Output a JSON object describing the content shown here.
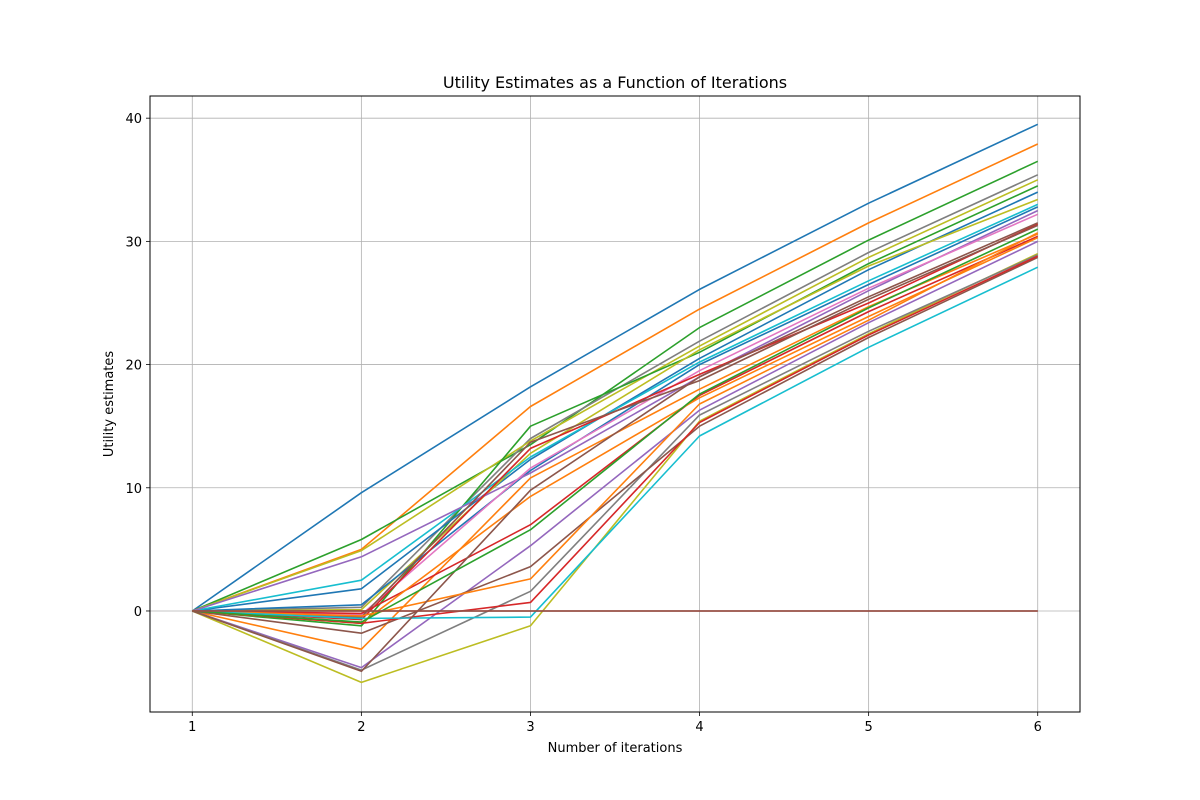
{
  "chart_data": {
    "type": "line",
    "title": "Utility Estimates as a Function of Iterations",
    "xlabel": "Number of iterations",
    "ylabel": "Utility estimates",
    "x": [
      1,
      2,
      3,
      4,
      5,
      6
    ],
    "xlim": [
      0.75,
      6.25
    ],
    "ylim": [
      -8.2,
      41.8
    ],
    "xticks": [
      1,
      2,
      3,
      4,
      5,
      6
    ],
    "yticks": [
      0,
      10,
      20,
      30,
      40
    ],
    "grid": true,
    "series": [
      {
        "color": "#1f77b4",
        "values": [
          0,
          9.6,
          18.2,
          26.1,
          33.1,
          39.5
        ]
      },
      {
        "color": "#ff7f0e",
        "values": [
          0,
          5.0,
          16.6,
          24.5,
          31.5,
          37.9
        ]
      },
      {
        "color": "#2ca02c",
        "values": [
          0,
          5.8,
          13.5,
          23.0,
          30.1,
          36.5
        ]
      },
      {
        "color": "#7f7f7f",
        "values": [
          0,
          0.3,
          14.0,
          21.9,
          29.1,
          35.4
        ]
      },
      {
        "color": "#bcbd22",
        "values": [
          0,
          4.9,
          13.8,
          21.5,
          28.7,
          35.0
        ]
      },
      {
        "color": "#2ca02c",
        "values": [
          0,
          -1.2,
          15.0,
          21.0,
          28.2,
          34.5
        ]
      },
      {
        "color": "#1f77b4",
        "values": [
          0,
          1.8,
          12.3,
          20.5,
          27.7,
          34.0
        ]
      },
      {
        "color": "#bcbd22",
        "values": [
          0,
          0.1,
          12.8,
          21.2,
          28.0,
          33.4
        ]
      },
      {
        "color": "#17becf",
        "values": [
          0,
          2.5,
          12.5,
          20.2,
          26.8,
          33.0
        ]
      },
      {
        "color": "#1f77b4",
        "values": [
          0,
          0.5,
          11.4,
          20.0,
          26.5,
          32.8
        ]
      },
      {
        "color": "#9467bd",
        "values": [
          0,
          4.4,
          11.2,
          19.0,
          26.0,
          32.5
        ]
      },
      {
        "color": "#e377c2",
        "values": [
          0,
          -0.3,
          11.6,
          19.5,
          26.2,
          32.2
        ]
      },
      {
        "color": "#d62728",
        "values": [
          0,
          -0.7,
          13.2,
          19.2,
          25.0,
          31.4
        ]
      },
      {
        "color": "#8c564b",
        "values": [
          0,
          -0.5,
          13.7,
          18.7,
          25.3,
          31.3
        ]
      },
      {
        "color": "#ff7f0e",
        "values": [
          0,
          -3.1,
          10.8,
          18.0,
          24.7,
          30.6
        ]
      },
      {
        "color": "#d62728",
        "values": [
          0,
          -0.2,
          7.0,
          17.5,
          24.3,
          30.4
        ]
      },
      {
        "color": "#9467bd",
        "values": [
          0,
          -4.6,
          5.3,
          16.3,
          23.4,
          30.0
        ]
      },
      {
        "color": "#ff7f0e",
        "values": [
          0,
          -1.0,
          9.3,
          17.3,
          23.9,
          30.3
        ]
      },
      {
        "color": "#bcbd22",
        "values": [
          0,
          -5.8,
          -1.2,
          15.4,
          22.5,
          29.0
        ]
      },
      {
        "color": "#7f7f7f",
        "values": [
          0,
          -4.8,
          1.6,
          15.9,
          22.7,
          28.9
        ]
      },
      {
        "color": "#8c564b",
        "values": [
          0,
          -1.8,
          3.6,
          15.0,
          22.2,
          28.7
        ]
      },
      {
        "color": "#ff7f0e",
        "values": [
          0,
          -0.4,
          2.6,
          16.8,
          23.6,
          30.7
        ]
      },
      {
        "color": "#d62728",
        "values": [
          0,
          -1.0,
          0.7,
          15.3,
          22.4,
          28.8
        ]
      },
      {
        "color": "#17becf",
        "values": [
          0,
          -0.6,
          -0.5,
          14.2,
          21.4,
          27.9
        ]
      },
      {
        "color": "#8c564b",
        "values": [
          0,
          -4.9,
          9.8,
          19.0,
          25.5,
          31.5
        ]
      },
      {
        "color": "#2ca02c",
        "values": [
          0,
          -0.9,
          6.6,
          17.6,
          24.6,
          31.0
        ]
      },
      {
        "color": "#d62728",
        "values": [
          0,
          0.0,
          0.0,
          0.0,
          0.0,
          0.0
        ]
      },
      {
        "color": "#8c564b",
        "values": [
          0,
          0.0,
          0.0,
          0.0,
          0.0,
          0.0
        ]
      }
    ]
  }
}
